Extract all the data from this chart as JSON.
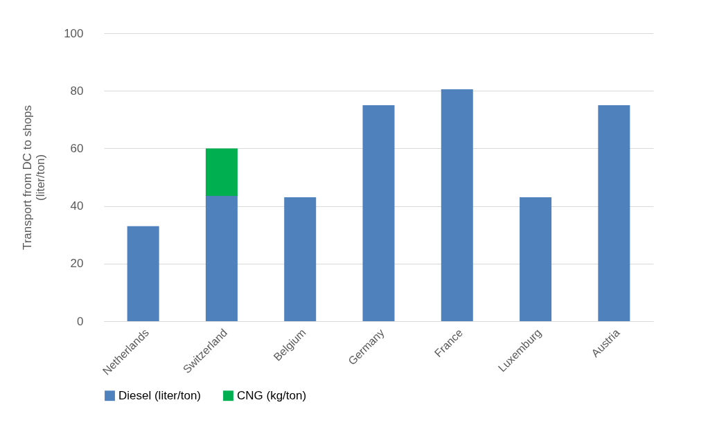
{
  "chart_data": {
    "type": "bar",
    "stacked": true,
    "ylabel": "Transport from DC to shops\n(liter/ton)",
    "categories": [
      "Netherlands",
      "Switzerland",
      "Belgium",
      "Germany",
      "France",
      "Luxemburg",
      "Austria"
    ],
    "series": [
      {
        "name": "Diesel (liter/ton)",
        "color": "#4f81bd",
        "values": [
          33,
          43.5,
          43,
          75,
          80.5,
          43,
          75
        ]
      },
      {
        "name": "CNG (kg/ton)",
        "color": "#00b050",
        "values": [
          0,
          16.5,
          0,
          0,
          0,
          0,
          0
        ]
      }
    ],
    "ylim": [
      0,
      100
    ],
    "yticks": [
      0,
      20,
      40,
      60,
      80,
      100
    ],
    "grid": "y",
    "legend": "bottom"
  }
}
